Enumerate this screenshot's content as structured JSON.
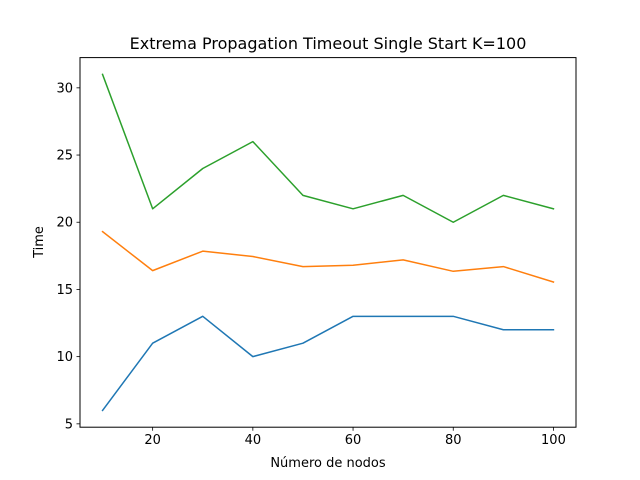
{
  "chart_data": {
    "type": "line",
    "title": "Extrema Propagation Timeout Single Start K=100",
    "xlabel": "Número de nodos",
    "ylabel": "Time",
    "x": [
      10,
      20,
      30,
      40,
      50,
      60,
      70,
      80,
      90,
      100
    ],
    "xlim": [
      5.5,
      104.5
    ],
    "ylim": [
      4.75,
      32.25
    ],
    "xticks": [
      20,
      40,
      60,
      80,
      100
    ],
    "yticks": [
      5,
      10,
      15,
      20,
      25,
      30
    ],
    "grid": false,
    "legend": "none",
    "series": [
      {
        "color": "#1f77b4",
        "values": [
          6,
          11,
          13,
          10,
          11,
          13,
          13,
          13,
          12,
          12
        ]
      },
      {
        "color": "#ff7f0e",
        "values": [
          19.3,
          16.4,
          17.85,
          17.45,
          16.7,
          16.8,
          17.2,
          16.35,
          16.7,
          15.55
        ]
      },
      {
        "color": "#2ca02c",
        "values": [
          31,
          21,
          24,
          26,
          22,
          21,
          22,
          20,
          22,
          21
        ]
      }
    ]
  }
}
